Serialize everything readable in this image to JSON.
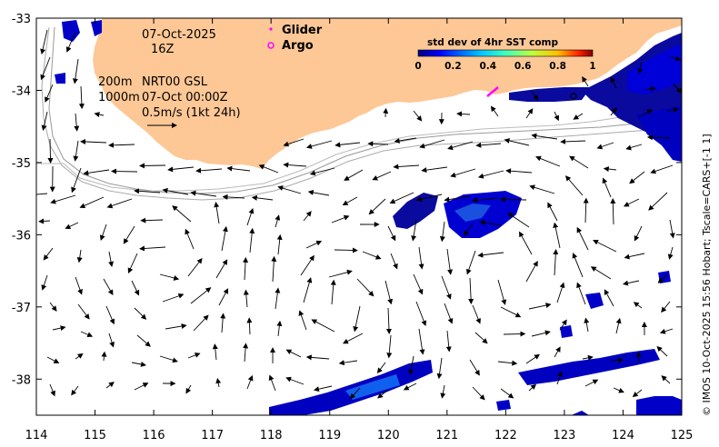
{
  "map": {
    "date_line": "07-Oct-2025",
    "hour_line": "16Z",
    "depth_line": "200m",
    "product_line": "NRT00 GSL",
    "depth2_line": "1000m",
    "time_line": "07-Oct 00:00Z",
    "scale_label": "0.5m/s (1kt 24h)",
    "credit": "© IMOS 10-Oct-2025 15:56 Hobart; Tscale=CARS+[-1 1]",
    "x_ticks": [
      "114",
      "115",
      "116",
      "117",
      "118",
      "119",
      "120",
      "121",
      "122",
      "123",
      "124",
      "125"
    ],
    "y_ticks": [
      "-33",
      "-34",
      "-35",
      "-36",
      "-37",
      "-38"
    ],
    "lon_range": [
      114,
      125
    ],
    "lat_range": [
      -38.5,
      -33
    ],
    "land_color": "#fdc896"
  },
  "legend": {
    "glider_label": "Glider",
    "argo_label": "Argo",
    "glider_color": "#ff00ff",
    "argo_color": "#ff00ff"
  },
  "colorbar": {
    "title": "std dev of 4hr SST comp",
    "ticks": [
      "0",
      "0.2",
      "0.4",
      "0.6",
      "0.8",
      "1"
    ],
    "range": [
      0,
      1
    ]
  }
}
